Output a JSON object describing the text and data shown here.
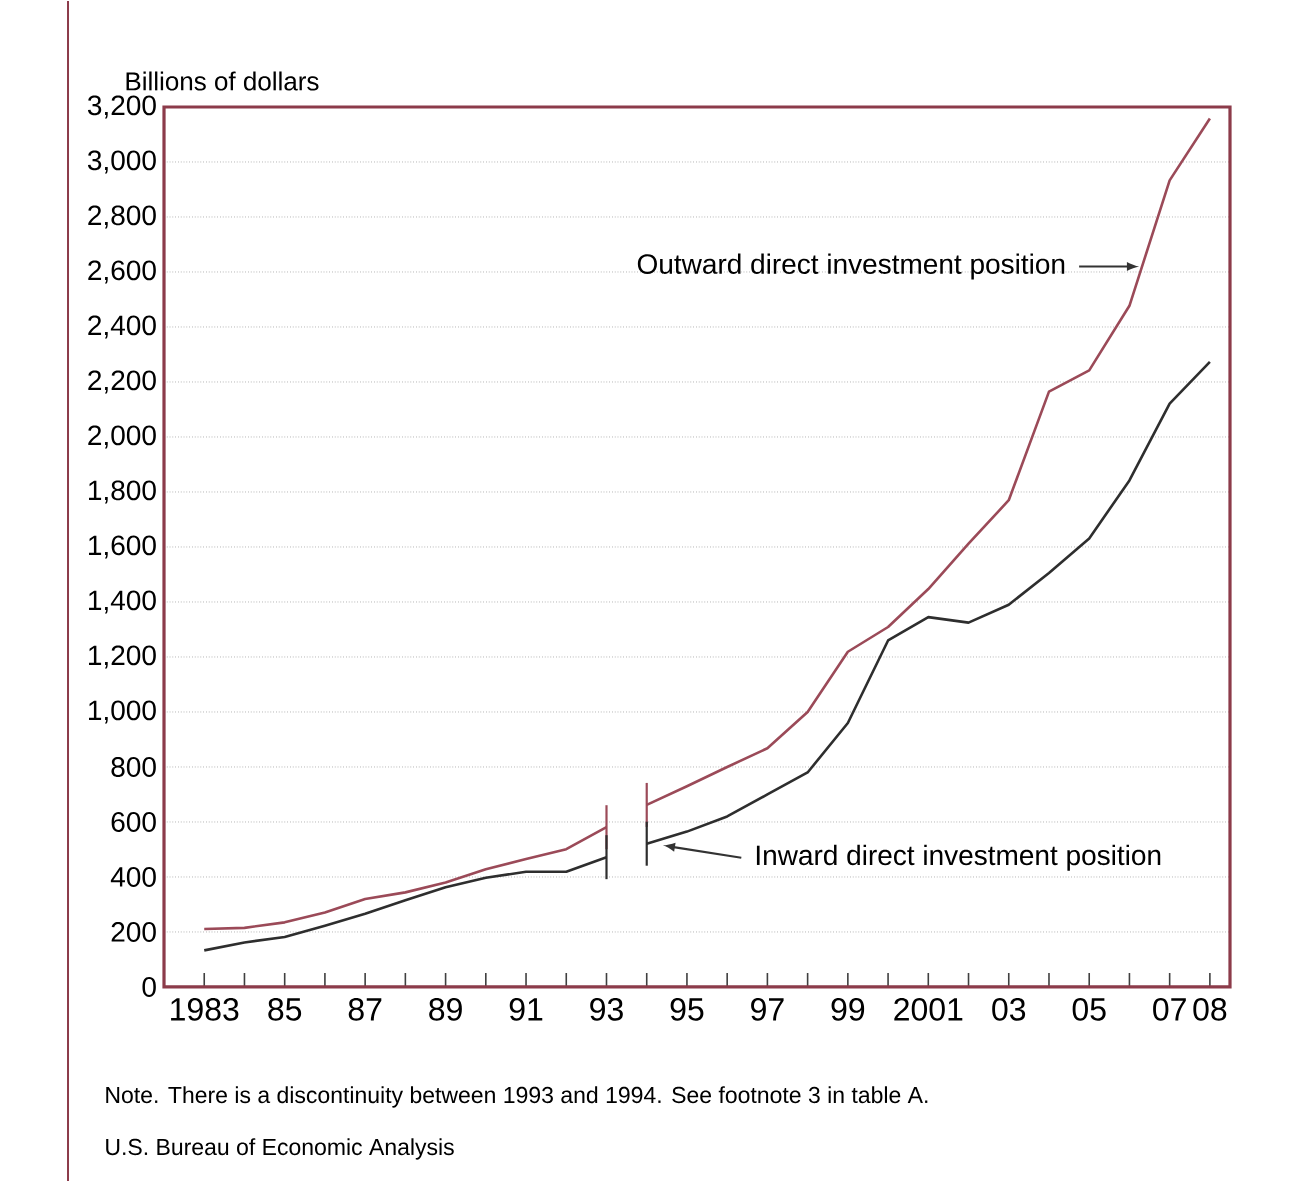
{
  "chart_data": {
    "type": "line",
    "ylabel": "Billions of dollars",
    "x": [
      1983,
      1984,
      1985,
      1986,
      1987,
      1988,
      1989,
      1990,
      1991,
      1992,
      1993,
      1993.5,
      1994,
      1995,
      1996,
      1997,
      1998,
      1999,
      2000,
      2001,
      2002,
      2003,
      2004,
      2005,
      2006,
      2007,
      2008
    ],
    "series": [
      {
        "name": "Outward direct investment position",
        "color": "#9b4a58",
        "values": [
          211,
          215,
          235,
          271,
          320,
          344,
          380,
          428,
          465,
          501,
          581,
          null,
          662,
          730,
          800,
          868,
          1000,
          1219,
          1309,
          1447,
          1612,
          1770,
          2165,
          2242,
          2477,
          2933,
          3158
        ]
      },
      {
        "name": "Inward direct investment position",
        "color": "#2e2e2e",
        "values": [
          133,
          162,
          182,
          223,
          266,
          315,
          363,
          397,
          419,
          419,
          472,
          null,
          521,
          565,
          620,
          700,
          780,
          960,
          1260,
          1345,
          1325,
          1390,
          1505,
          1631,
          1842,
          2121,
          2273
        ]
      }
    ],
    "xlim": [
      1982,
      2008.5
    ],
    "xticks": [
      {
        "value": 1983,
        "label": "1983"
      },
      {
        "value": 1984,
        "label": null
      },
      {
        "value": 1985,
        "label": "85"
      },
      {
        "value": 1986,
        "label": null
      },
      {
        "value": 1987,
        "label": "87"
      },
      {
        "value": 1988,
        "label": null
      },
      {
        "value": 1989,
        "label": "89"
      },
      {
        "value": 1990,
        "label": null
      },
      {
        "value": 1991,
        "label": "91"
      },
      {
        "value": 1992,
        "label": null
      },
      {
        "value": 1993,
        "label": "93"
      },
      {
        "value": 1994,
        "label": null
      },
      {
        "value": 1995,
        "label": "95"
      },
      {
        "value": 1996,
        "label": null
      },
      {
        "value": 1997,
        "label": "97"
      },
      {
        "value": 1998,
        "label": null
      },
      {
        "value": 1999,
        "label": "99"
      },
      {
        "value": 2000,
        "label": null
      },
      {
        "value": 2001,
        "label": "2001"
      },
      {
        "value": 2002,
        "label": null
      },
      {
        "value": 2003,
        "label": "03"
      },
      {
        "value": 2004,
        "label": null
      },
      {
        "value": 2005,
        "label": "05"
      },
      {
        "value": 2006,
        "label": null
      },
      {
        "value": 2007,
        "label": "07"
      },
      {
        "value": 2008,
        "label": "08"
      }
    ],
    "ylim": [
      0,
      3200
    ],
    "yticks": [
      0,
      {
        "value": 200,
        "label": "200"
      },
      {
        "value": 400,
        "label": "400"
      },
      {
        "value": 600,
        "label": "600"
      },
      {
        "value": 800,
        "label": "800"
      },
      {
        "value": 1000,
        "label": "1,000"
      },
      {
        "value": 1200,
        "label": "1,200"
      },
      {
        "value": 1400,
        "label": "1,400"
      },
      {
        "value": 1600,
        "label": "1,600"
      },
      {
        "value": 1800,
        "label": "1,800"
      },
      {
        "value": 2000,
        "label": "2,000"
      },
      {
        "value": 2200,
        "label": "2,200"
      },
      {
        "value": 2400,
        "label": "2,400"
      },
      {
        "value": 2600,
        "label": "2,600"
      },
      {
        "value": 2800,
        "label": "2,800"
      },
      {
        "value": 3000,
        "label": "3,000"
      },
      {
        "value": 3200,
        "label": "3,200"
      }
    ],
    "grid": "y",
    "marker": "none",
    "line_style": "solid",
    "annotations": [
      "Note. There is a discontinuity between 1993 and 1994. See footnote 3 in table A.",
      "U.S. Bureau of Economic Analysis"
    ]
  }
}
